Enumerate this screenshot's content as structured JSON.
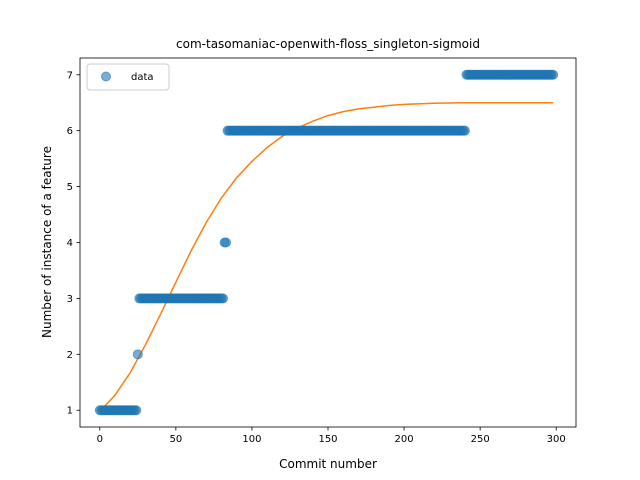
{
  "chart_data": {
    "type": "scatter",
    "title": "com-tasomaniac-openwith-floss_singleton-sigmoid",
    "xlabel": "Commit number",
    "ylabel": "Number of instance of a feature",
    "xlim": [
      -13,
      313
    ],
    "ylim": [
      0.7,
      7.3
    ],
    "xticks": [
      0,
      50,
      100,
      150,
      200,
      250,
      300
    ],
    "yticks": [
      1,
      2,
      3,
      4,
      5,
      6,
      7
    ],
    "legend": {
      "placement": "top-left",
      "entries": [
        "data"
      ]
    },
    "colors": {
      "data": "#1f77b4",
      "fit": "#ff7f0e"
    },
    "series": [
      {
        "name": "data",
        "kind": "scatter",
        "segments": [
          {
            "x_start": 0,
            "x_end": 24,
            "y": 1
          },
          {
            "x_start": 25,
            "x_end": 25,
            "y": 2
          },
          {
            "x_start": 26,
            "x_end": 81,
            "y": 3
          },
          {
            "x_start": 82,
            "x_end": 83,
            "y": 4
          },
          {
            "x_start": 84,
            "x_end": 240,
            "y": 6
          },
          {
            "x_start": 241,
            "x_end": 298,
            "y": 7
          }
        ]
      },
      {
        "kind": "line",
        "x": [
          0,
          10,
          20,
          30,
          40,
          50,
          60,
          70,
          80,
          90,
          100,
          110,
          120,
          130,
          140,
          150,
          160,
          170,
          180,
          190,
          200,
          220,
          240,
          260,
          280,
          298
        ],
        "y": [
          0.98,
          1.27,
          1.67,
          2.17,
          2.72,
          3.29,
          3.85,
          4.36,
          4.8,
          5.16,
          5.45,
          5.7,
          5.9,
          6.05,
          6.17,
          6.27,
          6.34,
          6.39,
          6.42,
          6.45,
          6.47,
          6.49,
          6.5,
          6.5,
          6.5,
          6.5
        ]
      }
    ]
  }
}
